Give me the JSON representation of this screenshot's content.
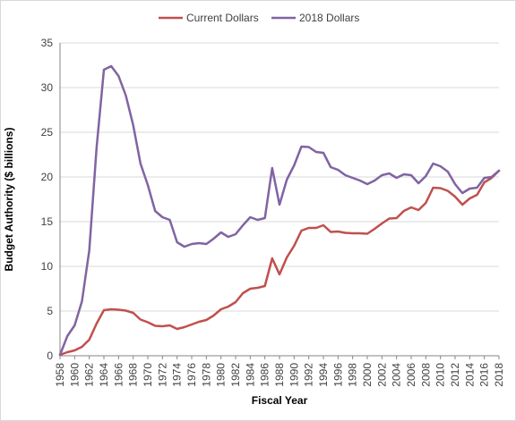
{
  "chart_data": {
    "type": "line",
    "title": "",
    "xlabel": "Fiscal Year",
    "ylabel": "Budget Authority ($ billions)",
    "ylim": [
      0,
      35
    ],
    "yticks": [
      0,
      5,
      10,
      15,
      20,
      25,
      30,
      35
    ],
    "xlim": [
      1958,
      2018
    ],
    "xticks": [
      1958,
      1960,
      1962,
      1964,
      1966,
      1968,
      1970,
      1972,
      1974,
      1976,
      1978,
      1980,
      1982,
      1984,
      1986,
      1988,
      1990,
      1992,
      1994,
      1996,
      1998,
      2000,
      2002,
      2004,
      2006,
      2008,
      2010,
      2012,
      2014,
      2016,
      2018
    ],
    "grid": "horizontal",
    "legend": "top-center",
    "x": [
      1958,
      1959,
      1960,
      1961,
      1962,
      1963,
      1964,
      1965,
      1966,
      1967,
      1968,
      1969,
      1970,
      1971,
      1972,
      1973,
      1974,
      1975,
      1976,
      1977,
      1978,
      1979,
      1980,
      1981,
      1982,
      1983,
      1984,
      1985,
      1986,
      1987,
      1988,
      1989,
      1990,
      1991,
      1992,
      1993,
      1994,
      1995,
      1996,
      1997,
      1998,
      1999,
      2000,
      2001,
      2002,
      2003,
      2004,
      2005,
      2006,
      2007,
      2008,
      2009,
      2010,
      2011,
      2012,
      2013,
      2014,
      2015,
      2016,
      2017,
      2018
    ],
    "series": [
      {
        "name": "Current Dollars",
        "color": "#c0504d",
        "values": [
          0.1,
          0.4,
          0.6,
          1.0,
          1.8,
          3.6,
          5.1,
          5.2,
          5.15,
          5.05,
          4.8,
          4.05,
          3.75,
          3.35,
          3.3,
          3.4,
          3.0,
          3.2,
          3.5,
          3.8,
          4.0,
          4.5,
          5.2,
          5.5,
          6.0,
          7.0,
          7.5,
          7.6,
          7.8,
          10.9,
          9.1,
          11.0,
          12.3,
          14.0,
          14.3,
          14.3,
          14.6,
          13.85,
          13.9,
          13.75,
          13.7,
          13.7,
          13.65,
          14.2,
          14.8,
          15.35,
          15.4,
          16.2,
          16.6,
          16.3,
          17.1,
          18.8,
          18.75,
          18.45,
          17.8,
          16.9,
          17.6,
          18.0,
          19.4,
          19.9,
          20.7
        ]
      },
      {
        "name": "2018 Dollars",
        "color": "#8064a2",
        "values": [
          0.1,
          2.2,
          3.4,
          6.1,
          11.8,
          23.3,
          32.0,
          32.4,
          31.3,
          29.1,
          25.8,
          21.5,
          19.1,
          16.2,
          15.5,
          15.2,
          12.7,
          12.2,
          12.5,
          12.6,
          12.5,
          13.1,
          13.8,
          13.3,
          13.6,
          14.6,
          15.5,
          15.2,
          15.4,
          21.0,
          16.9,
          19.7,
          21.3,
          23.4,
          23.35,
          22.8,
          22.7,
          21.1,
          20.8,
          20.2,
          19.9,
          19.6,
          19.2,
          19.6,
          20.2,
          20.4,
          19.9,
          20.3,
          20.2,
          19.3,
          20.1,
          21.5,
          21.2,
          20.6,
          19.2,
          18.2,
          18.7,
          18.8,
          19.9,
          20.0,
          20.7
        ]
      }
    ]
  }
}
